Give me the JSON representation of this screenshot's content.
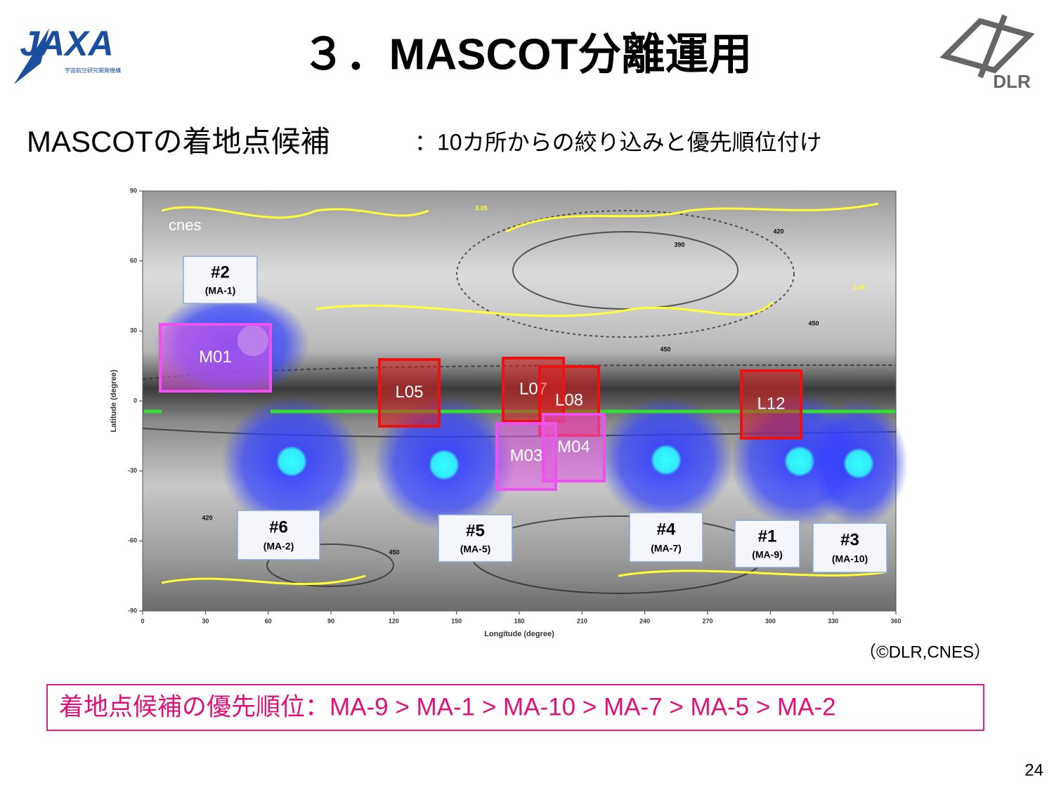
{
  "header": {
    "logo_left": "JAXA",
    "logo_left_sub": "宇宙航空研究開発機構",
    "title": "３．MASCOT分離運用",
    "logo_right": "DLR"
  },
  "subtitle": {
    "main": "MASCOTの着地点候補",
    "detail": "：10カ所からの絞り込みと優先順位付け"
  },
  "map": {
    "watermark": "cnes",
    "y_axis_label": "Latitude (degree)",
    "x_axis_label": "Longitude (degree)",
    "yticks": [
      90,
      60,
      30,
      0,
      -30,
      -60,
      -90
    ],
    "xticks": [
      0,
      30,
      60,
      90,
      120,
      150,
      180,
      210,
      240,
      270,
      300,
      330,
      360
    ],
    "contour_labels": [
      "390",
      "420",
      "450",
      "450",
      "420",
      "450",
      "3.05",
      "3.05"
    ],
    "candidate_regions": [
      "M01",
      "L05",
      "L07",
      "L08",
      "L12",
      "M03",
      "M04"
    ],
    "landing_sites": [
      {
        "id": "#2",
        "code": "(MA-1)"
      },
      {
        "id": "#6",
        "code": "(MA-2)"
      },
      {
        "id": "#5",
        "code": "(MA-5)"
      },
      {
        "id": "#4",
        "code": "(MA-7)"
      },
      {
        "id": "#1",
        "code": "(MA-9)"
      },
      {
        "id": "#3",
        "code": "(MA-10)"
      }
    ]
  },
  "credit": "（©DLR,CNES）",
  "priority": "着地点候補の優先順位：MA-9 > MA-1 > MA-10 > MA-7 > MA-5 > MA-2",
  "page_number": 24
}
